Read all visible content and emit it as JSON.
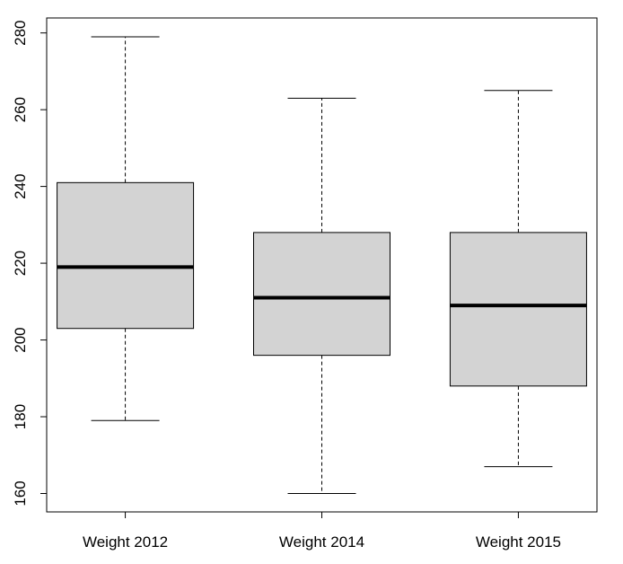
{
  "chart_data": {
    "type": "boxplot",
    "title": "",
    "xlabel": "",
    "ylabel": "",
    "categories": [
      "Weight 2012",
      "Weight 2014",
      "Weight 2015"
    ],
    "boxes": [
      {
        "min": 179,
        "q1": 203,
        "median": 219,
        "q3": 241,
        "max": 279
      },
      {
        "min": 160,
        "q1": 196,
        "median": 211,
        "q3": 228,
        "max": 263
      },
      {
        "min": 167,
        "q1": 188,
        "median": 209,
        "q3": 228,
        "max": 265
      }
    ],
    "yticks": [
      160,
      180,
      200,
      220,
      240,
      260,
      280
    ],
    "ytick_labels": [
      "160",
      "180",
      "200",
      "220",
      "240",
      "260",
      "280"
    ],
    "ylim": [
      155.2,
      283.9
    ],
    "grid": false,
    "box_fill": "#d3d3d3",
    "line_color": "#000000"
  }
}
